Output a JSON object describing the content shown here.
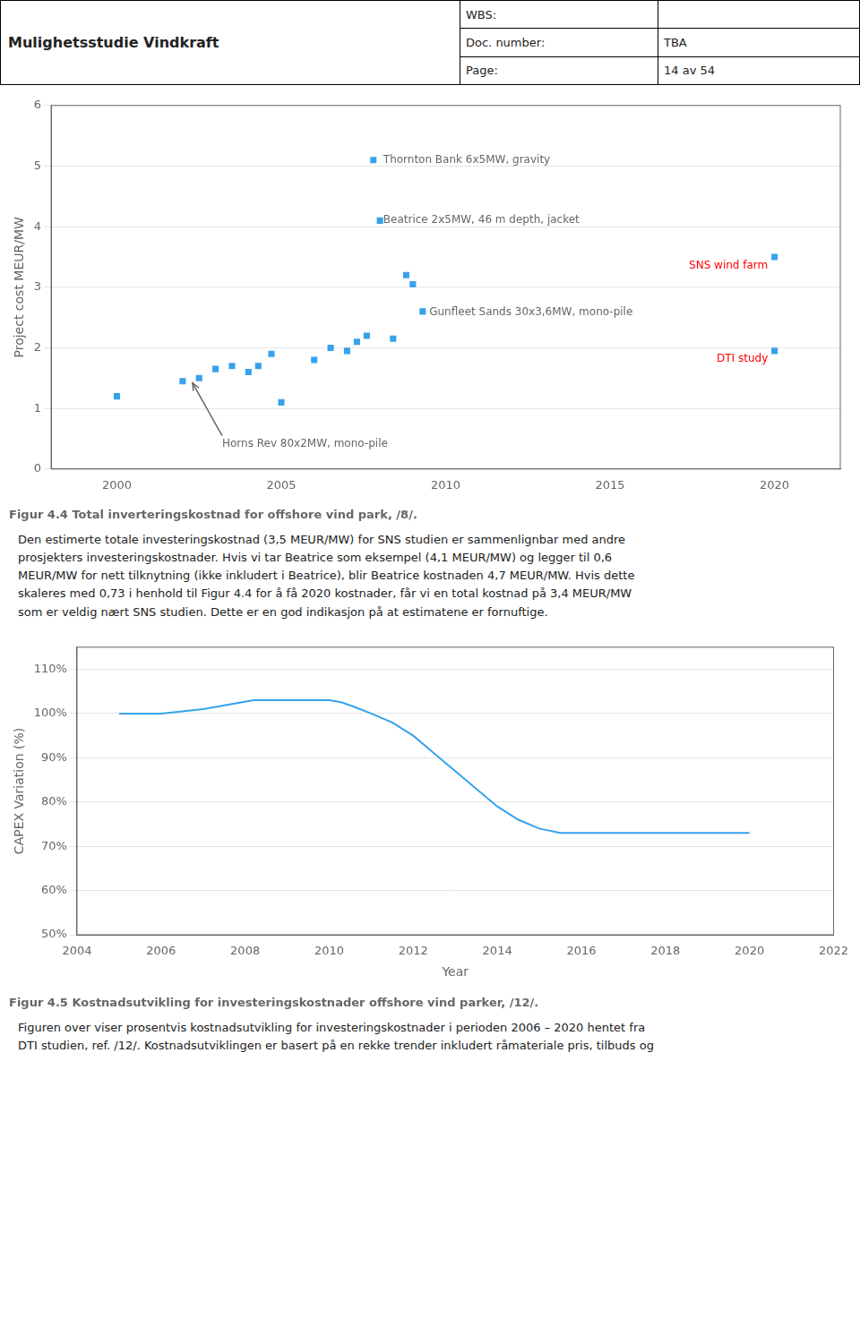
{
  "header": {
    "title": "Mulighetsstudie Vindkraft",
    "rows": [
      [
        "WBS:"
      ],
      [
        "Doc. number:",
        "TBA"
      ],
      [
        "Page:",
        "14 av 54"
      ]
    ]
  },
  "chart_data": [
    {
      "type": "scatter",
      "title": "Figur 4.4 Total inverteringskostnad for offshore vind park, /8/.",
      "x": [
        2000,
        2002,
        2002.5,
        2003,
        2003.5,
        2004,
        2004.3,
        2004.7,
        2005.0,
        2006.0,
        2006.5,
        2007.0,
        2007.3,
        2007.6,
        2007.8,
        2008.0,
        2008.4,
        2008.8,
        2009.0,
        2009.3,
        2020,
        2020
      ],
      "values": [
        1.2,
        1.45,
        1.5,
        1.65,
        1.7,
        1.6,
        1.7,
        1.9,
        1.1,
        1.8,
        2.0,
        1.95,
        2.1,
        2.2,
        5.1,
        4.1,
        2.15,
        3.2,
        3.05,
        2.6,
        3.5,
        1.95
      ],
      "marker": "square",
      "xlim": [
        1998,
        2022
      ],
      "ylim": [
        0,
        6
      ],
      "xticks": [
        2000,
        2005,
        2010,
        2015,
        2020
      ],
      "yticks": [
        0,
        1,
        2,
        3,
        4,
        5,
        6
      ],
      "ylabel": "Project cost MEUR/MW",
      "grid": "y",
      "annotations": [
        {
          "text": "Thornton Bank 6x5MW, gravity",
          "x": 2008.1,
          "y": 5.1,
          "align": "left"
        },
        {
          "text": "Beatrice 2x5MW, 46 m depth, jacket",
          "x": 2008.1,
          "y": 4.1,
          "align": "left"
        },
        {
          "text": "Gunfleet Sands 30x3,6MW, mono-pile",
          "x": 2009.5,
          "y": 2.58,
          "align": "left"
        },
        {
          "text": "SNS wind farm",
          "x": 2019.8,
          "y": 3.35,
          "align": "right",
          "color": "red"
        },
        {
          "text": "DTI study",
          "x": 2019.8,
          "y": 1.82,
          "align": "right",
          "color": "red"
        },
        {
          "text": "Horns Rev 80x2MW, mono-pile",
          "x": 2003.2,
          "y": 0.42,
          "align": "left",
          "arrow_from": [
            2003.2,
            0.55
          ],
          "arrow_to": [
            2002.3,
            1.42
          ]
        }
      ]
    },
    {
      "type": "line",
      "title": "Figur 4.5 Kostnadsutvikling for investeringskostnader offshore vind parker, /12/.",
      "x": [
        2005.0,
        2005.5,
        2006.0,
        2006.5,
        2007.0,
        2007.3,
        2007.6,
        2007.9,
        2008.2,
        2008.5,
        2008.8,
        2009.1,
        2009.4,
        2009.7,
        2010.0,
        2010.3,
        2010.6,
        2011.0,
        2011.5,
        2012.0,
        2012.5,
        2013.0,
        2013.5,
        2014.0,
        2014.5,
        2015.0,
        2015.5,
        2016.0,
        2016.5,
        2017.0,
        2017.5,
        2018.0,
        2018.5,
        2019.0,
        2019.5,
        2020.0
      ],
      "values": [
        100,
        100,
        100,
        100.5,
        101,
        101.5,
        102,
        102.5,
        103,
        103,
        103,
        103,
        103,
        103,
        103,
        102.5,
        101.5,
        100,
        98,
        95,
        91,
        87,
        83,
        79,
        76,
        74,
        73,
        73,
        73,
        73,
        73,
        73,
        73,
        73,
        73,
        73
      ],
      "xlim": [
        2004,
        2022
      ],
      "ylim": [
        50,
        115
      ],
      "xticks": [
        2004,
        2006,
        2008,
        2010,
        2012,
        2014,
        2016,
        2018,
        2020,
        2022
      ],
      "yticks": [
        {
          "value": 50,
          "label": "50%"
        },
        {
          "value": 60,
          "label": "60%"
        },
        {
          "value": 70,
          "label": "70%"
        },
        {
          "value": 80,
          "label": "80%"
        },
        {
          "value": 90,
          "label": "90%"
        },
        {
          "value": 100,
          "label": "100%"
        },
        {
          "value": 110,
          "label": "110%"
        }
      ],
      "xlabel": "Year",
      "ylabel": "CAPEX Variation (%)",
      "grid": "y"
    }
  ],
  "body_text": [
    "Den estimerte totale investeringskostnad (3,5 MEUR/MW) for SNS studien er sammenlignbar med andre\nprosjekters investeringskostnader. Hvis vi tar Beatrice som eksempel (4,1 MEUR/MW) og legger til 0,6\nMEUR/MW for nett tilknytning (ikke inkludert i Beatrice), blir Beatrice kostnaden 4,7 MEUR/MW. Hvis dette\nskaleres med 0,73 i henhold til Figur 4.4 for å få 2020 kostnader, får vi en total kostnad på 3,4 MEUR/MW\nsom er veldig nært SNS studien. Dette er en god indikasjon på at estimatene er fornuftige.",
    "Figuren over viser prosentvis kostnadsutvikling for investeringskostnader i perioden 2006 – 2020 hentet fra\nDTI studien, ref. /12/. Kostnadsutviklingen er basert på en rekke trender inkludert råmateriale pris, tilbuds og"
  ]
}
